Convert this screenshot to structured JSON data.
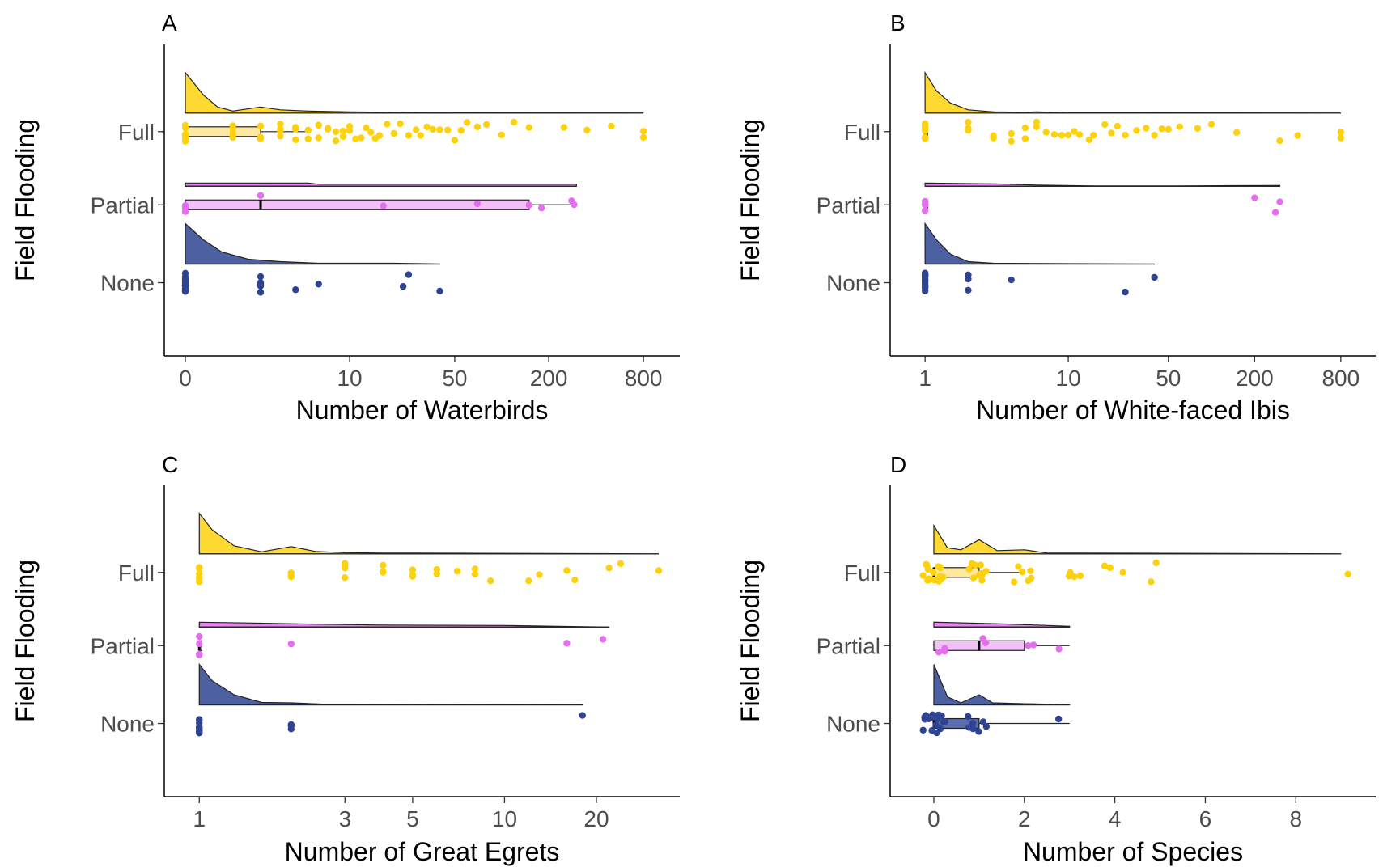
{
  "colors": {
    "Full": "#FDD20D",
    "Partial": "#E36FEF",
    "None": "#2E4490"
  },
  "chart_data": [
    {
      "type": "raincloud",
      "tag": "A",
      "xlabel": "Number of Waterbirds",
      "ylabel": "Field Flooding",
      "x_scale": "pseudo-log",
      "xlim": [
        0,
        1000
      ],
      "x_ticks": [
        0,
        10,
        50,
        200,
        800
      ],
      "x_tick_labels": [
        "0",
        "10",
        "50",
        "200",
        "800"
      ],
      "categories": [
        "Full",
        "Partial",
        "None"
      ],
      "grid": false,
      "series": [
        {
          "name": "Full",
          "range": [
            0,
            800
          ],
          "box": {
            "q1": 0,
            "median": 0,
            "q3": 2,
            "whisker_low": 0,
            "whisker_high": 5
          },
          "points": [
            0,
            0,
            0,
            0,
            0,
            0,
            0,
            0,
            0,
            0,
            1,
            1,
            1,
            1,
            1,
            2,
            2,
            2,
            2,
            2,
            3,
            3,
            3,
            3,
            4,
            4,
            4,
            5,
            5,
            5,
            6,
            6,
            6,
            7,
            7,
            8,
            8,
            9,
            9,
            10,
            10,
            11,
            12,
            13,
            14,
            15,
            16,
            18,
            20,
            22,
            25,
            28,
            30,
            33,
            36,
            40,
            45,
            50,
            55,
            60,
            70,
            80,
            100,
            120,
            150,
            250,
            350,
            500,
            800,
            800
          ],
          "density": [
            [
              0,
              1.0
            ],
            [
              0.3,
              0.45
            ],
            [
              0.6,
              0.15
            ],
            [
              1,
              0.05
            ],
            [
              2,
              0.15
            ],
            [
              3,
              0.08
            ],
            [
              5,
              0.05
            ],
            [
              10,
              0.03
            ],
            [
              30,
              0.01
            ],
            [
              100,
              0.005
            ],
            [
              800,
              0
            ]
          ]
        },
        {
          "name": "Partial",
          "range": [
            0,
            300
          ],
          "box": {
            "q1": 0,
            "median": 2,
            "q3": 150,
            "whisker_low": 0,
            "whisker_high": 290
          },
          "points": [
            0,
            0,
            0,
            0,
            2,
            17,
            70,
            150,
            180,
            280,
            290
          ],
          "density": [
            [
              0,
              0.08
            ],
            [
              5,
              0.08
            ],
            [
              6,
              0.05
            ],
            [
              300,
              0.05
            ]
          ]
        },
        {
          "name": "None",
          "range": [
            0,
            40
          ],
          "box": {
            "q1": 0,
            "median": 0,
            "q3": 0,
            "whisker_low": 0,
            "whisker_high": 0
          },
          "points": [
            0,
            0,
            0,
            0,
            0,
            0,
            0,
            0,
            0,
            0,
            0,
            0,
            0,
            2,
            2,
            2,
            2,
            2,
            4,
            6,
            23,
            25,
            40
          ],
          "density": [
            [
              0,
              1.0
            ],
            [
              0.3,
              0.6
            ],
            [
              0.7,
              0.3
            ],
            [
              1.5,
              0.12
            ],
            [
              3,
              0.06
            ],
            [
              6,
              0.02
            ],
            [
              20,
              0.02
            ],
            [
              30,
              0.01
            ],
            [
              40,
              0
            ]
          ]
        }
      ]
    },
    {
      "type": "raincloud",
      "tag": "B",
      "xlabel": "Number of White-faced Ibis",
      "ylabel": "Field Flooding",
      "x_scale": "log",
      "xlim": [
        0.8,
        1000
      ],
      "x_ticks": [
        1,
        10,
        50,
        200,
        800
      ],
      "x_tick_labels": [
        "1",
        "10",
        "50",
        "200",
        "800"
      ],
      "categories": [
        "Full",
        "Partial",
        "None"
      ],
      "grid": false,
      "series": [
        {
          "name": "Full",
          "range": [
            1,
            800
          ],
          "box": {
            "q1": 1,
            "median": 1,
            "q3": 1,
            "whisker_low": 1,
            "whisker_high": 1
          },
          "points": [
            1,
            1,
            1,
            1,
            1,
            1,
            1,
            1,
            2,
            2,
            2,
            2,
            3,
            3,
            3,
            4,
            4,
            5,
            5,
            6,
            6,
            7,
            8,
            9,
            10,
            11,
            12,
            14,
            15,
            18,
            20,
            22,
            25,
            30,
            35,
            40,
            45,
            50,
            60,
            80,
            100,
            150,
            300,
            400,
            800,
            800
          ],
          "density": [
            [
              1,
              1.0
            ],
            [
              1.2,
              0.55
            ],
            [
              1.5,
              0.25
            ],
            [
              2,
              0.08
            ],
            [
              3,
              0.03
            ],
            [
              5,
              0.02
            ],
            [
              6,
              0.03
            ],
            [
              10,
              0.01
            ],
            [
              100,
              0.005
            ],
            [
              800,
              0
            ]
          ]
        },
        {
          "name": "Partial",
          "range": [
            1,
            300
          ],
          "box": {
            "q1": 1,
            "median": 1,
            "q3": 1,
            "whisker_low": 1,
            "whisker_high": 1
          },
          "points": [
            1,
            1,
            1,
            1,
            200,
            280,
            300
          ],
          "density": [
            [
              1,
              0.08
            ],
            [
              3,
              0.06
            ],
            [
              6,
              0.03
            ],
            [
              15,
              0.01
            ],
            [
              60,
              0.01
            ],
            [
              300,
              0.02
            ]
          ]
        },
        {
          "name": "None",
          "range": [
            1,
            40
          ],
          "box": {
            "q1": 1,
            "median": 1,
            "q3": 1,
            "whisker_low": 1,
            "whisker_high": 1
          },
          "points": [
            1,
            1,
            1,
            1,
            1,
            1,
            1,
            1,
            1,
            1,
            1,
            1,
            1,
            1,
            2,
            2,
            2,
            4,
            25,
            40
          ],
          "density": [
            [
              1,
              1.0
            ],
            [
              1.2,
              0.6
            ],
            [
              1.5,
              0.25
            ],
            [
              2,
              0.06
            ],
            [
              3,
              0.02
            ],
            [
              10,
              0.01
            ],
            [
              40,
              0
            ]
          ]
        }
      ]
    },
    {
      "type": "raincloud",
      "tag": "C",
      "xlabel": "Number of Great Egrets",
      "ylabel": "Field Flooding",
      "x_scale": "log",
      "xlim": [
        0.9,
        32
      ],
      "x_ticks": [
        1,
        3,
        5,
        10,
        20
      ],
      "x_tick_labels": [
        "1",
        "3",
        "5",
        "10",
        "20"
      ],
      "categories": [
        "Full",
        "Partial",
        "None"
      ],
      "grid": false,
      "series": [
        {
          "name": "Full",
          "range": [
            1,
            32
          ],
          "box": {
            "q1": 1,
            "median": 1,
            "q3": 1,
            "whisker_low": 1,
            "whisker_high": 1
          },
          "points": [
            1,
            1,
            1,
            1,
            1,
            1,
            1,
            1,
            2,
            2,
            2,
            2,
            2,
            3,
            3,
            3,
            3,
            4,
            4,
            4,
            5,
            5,
            5,
            6,
            6,
            7,
            7,
            8,
            8,
            9,
            12,
            13,
            16,
            17,
            22,
            24,
            32
          ],
          "density": [
            [
              1,
              1.0
            ],
            [
              1.1,
              0.6
            ],
            [
              1.3,
              0.2
            ],
            [
              1.6,
              0.05
            ],
            [
              2,
              0.18
            ],
            [
              2.4,
              0.06
            ],
            [
              3,
              0.03
            ],
            [
              4,
              0.02
            ],
            [
              32,
              0
            ]
          ]
        },
        {
          "name": "Partial",
          "range": [
            1,
            22
          ],
          "box": {
            "q1": 1,
            "median": 1,
            "q3": 1,
            "whisker_low": 1,
            "whisker_high": 1
          },
          "points": [
            1,
            1,
            1,
            1,
            2,
            16,
            21
          ],
          "density": [
            [
              1,
              0.12
            ],
            [
              1.5,
              0.1
            ],
            [
              2.5,
              0.07
            ],
            [
              4,
              0.05
            ],
            [
              10,
              0.04
            ],
            [
              22,
              0
            ]
          ]
        },
        {
          "name": "None",
          "range": [
            1,
            18
          ],
          "box": {
            "q1": 1,
            "median": 1,
            "q3": 1,
            "whisker_low": 1,
            "whisker_high": 1
          },
          "points": [
            1,
            1,
            1,
            1,
            1,
            1,
            1,
            1,
            1,
            1,
            2,
            2,
            2,
            2,
            18
          ],
          "density": [
            [
              1,
              1.0
            ],
            [
              1.1,
              0.6
            ],
            [
              1.3,
              0.25
            ],
            [
              1.6,
              0.06
            ],
            [
              2,
              0.05
            ],
            [
              2.5,
              0.02
            ],
            [
              18,
              0
            ]
          ]
        }
      ]
    },
    {
      "type": "raincloud",
      "tag": "D",
      "xlabel": "Number of Species",
      "ylabel": "Field Flooding",
      "x_scale": "linear",
      "xlim": [
        -0.5,
        9.3
      ],
      "x_ticks": [
        0,
        2,
        4,
        6,
        8
      ],
      "x_tick_labels": [
        "0",
        "2",
        "4",
        "6",
        "8"
      ],
      "categories": [
        "Full",
        "Partial",
        "None"
      ],
      "grid": false,
      "series": [
        {
          "name": "Full",
          "range": [
            0,
            9
          ],
          "box": {
            "q1": 0,
            "median": 0,
            "q3": 1,
            "whisker_low": 0,
            "whisker_high": 2
          },
          "points": [
            0,
            0,
            0,
            0,
            0,
            0,
            0,
            0,
            0,
            0,
            0,
            0,
            0,
            0,
            0,
            0,
            1,
            1,
            1,
            1,
            1,
            1,
            1,
            1,
            1,
            1,
            2,
            2,
            2,
            2,
            2,
            2,
            3,
            3,
            3,
            3,
            4,
            4,
            4,
            5,
            5,
            9
          ],
          "density": [
            [
              0,
              0.7
            ],
            [
              0.3,
              0.15
            ],
            [
              0.6,
              0.1
            ],
            [
              1,
              0.35
            ],
            [
              1.4,
              0.08
            ],
            [
              2,
              0.1
            ],
            [
              2.5,
              0.02
            ],
            [
              3,
              0.02
            ],
            [
              9,
              0
            ]
          ]
        },
        {
          "name": "Partial",
          "range": [
            0,
            3
          ],
          "box": {
            "q1": 0,
            "median": 1,
            "q3": 2,
            "whisker_low": 0,
            "whisker_high": 3
          },
          "points": [
            0,
            0,
            0,
            1,
            1,
            2,
            2,
            3
          ],
          "density": [
            [
              0,
              0.12
            ],
            [
              1.5,
              0.08
            ],
            [
              3,
              0.02
            ]
          ]
        },
        {
          "name": "None",
          "range": [
            0,
            3
          ],
          "box": {
            "q1": 0,
            "median": 0,
            "q3": 1,
            "whisker_low": 0,
            "whisker_high": 3
          },
          "points": [
            0,
            0,
            0,
            0,
            0,
            0,
            0,
            0,
            0,
            0,
            0,
            0,
            0,
            0,
            0,
            0,
            0,
            0,
            1,
            1,
            1,
            1,
            1,
            1,
            1,
            1,
            3
          ],
          "density": [
            [
              0,
              1.0
            ],
            [
              0.3,
              0.2
            ],
            [
              0.6,
              0.05
            ],
            [
              1,
              0.25
            ],
            [
              1.3,
              0.05
            ],
            [
              3,
              0
            ]
          ]
        }
      ]
    }
  ]
}
